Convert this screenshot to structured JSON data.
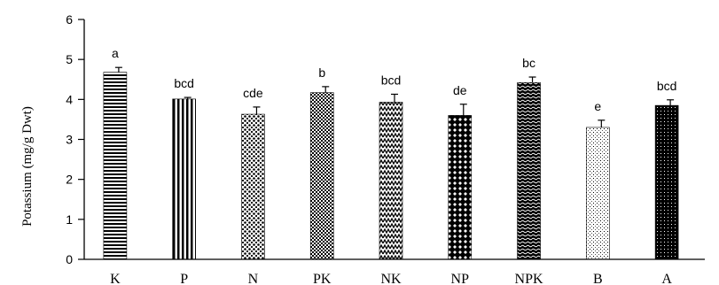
{
  "chart_data": {
    "type": "bar",
    "title": "",
    "xlabel": "",
    "ylabel": "Potassium (mg/g Dwt)",
    "ylim": [
      0,
      6
    ],
    "yticks": [
      0,
      1,
      2,
      3,
      4,
      5,
      6
    ],
    "grid": false,
    "categories": [
      "K",
      "P",
      "N",
      "PK",
      "NK",
      "NP",
      "NPK",
      "B",
      "A"
    ],
    "values": [
      4.68,
      4.01,
      3.63,
      4.17,
      3.93,
      3.6,
      4.42,
      3.3,
      3.85
    ],
    "errors": [
      0.12,
      0.04,
      0.18,
      0.15,
      0.2,
      0.28,
      0.14,
      0.18,
      0.14
    ],
    "significance_labels": [
      "a",
      "bcd",
      "cde",
      "b",
      "bcd",
      "de",
      "bc",
      "e",
      "bcd"
    ],
    "bar_patterns": [
      "horizontal-lines",
      "vertical-lines",
      "dots",
      "checker",
      "zigzag",
      "diamond",
      "dense-waves",
      "sparse-dots",
      "dark-mesh"
    ]
  },
  "colors": {
    "ink": "#000000",
    "background": "#ffffff"
  }
}
